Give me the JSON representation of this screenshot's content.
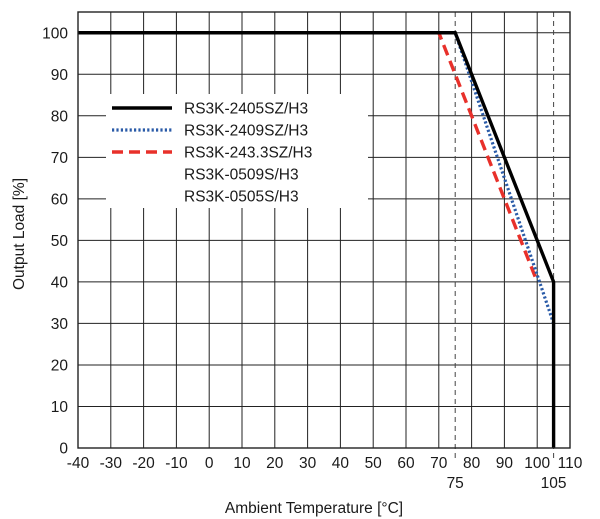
{
  "chart_data": {
    "type": "line",
    "xlabel": "Ambient Temperature [°C]",
    "ylabel": "Output Load [%]",
    "xlim": [
      -40,
      110
    ],
    "ylim": [
      0,
      105
    ],
    "grid": true,
    "legend_position": "upper-left",
    "x_ticks": [
      "-40",
      "-30",
      "-20",
      "-10",
      "0",
      "10",
      "20",
      "30",
      "40",
      "50",
      "60",
      "70",
      "75",
      "80",
      "90",
      "100",
      "105",
      "110"
    ],
    "x_tick_values": [
      -40,
      -30,
      -20,
      -10,
      0,
      10,
      20,
      30,
      40,
      50,
      60,
      70,
      75,
      80,
      90,
      100,
      105,
      110
    ],
    "x_markers": [
      {
        "value": 75,
        "label": "75"
      },
      {
        "value": 105,
        "label": "105"
      }
    ],
    "y_ticks": [
      "0",
      "10",
      "20",
      "30",
      "40",
      "50",
      "60",
      "70",
      "80",
      "90",
      "100"
    ],
    "y_tick_values": [
      0,
      10,
      20,
      30,
      40,
      50,
      60,
      70,
      80,
      90,
      100
    ],
    "series": [
      {
        "name": "RS3K-2405SZ/H3",
        "color": "#000000",
        "style": "solid",
        "points": [
          [
            -40,
            100
          ],
          [
            75,
            100
          ],
          [
            105,
            40
          ],
          [
            105,
            0
          ]
        ]
      },
      {
        "name": "RS3K-2409SZ/H3",
        "color": "#2a5ba8",
        "style": "dotted",
        "points": [
          [
            -40,
            100
          ],
          [
            75,
            100
          ],
          [
            105,
            30
          ]
        ]
      },
      {
        "name": "RS3K-243.3SZ/H3",
        "color": "#e8302a",
        "style": "dashed",
        "points": [
          [
            -40,
            100
          ],
          [
            70,
            100
          ],
          [
            100,
            40
          ]
        ]
      }
    ],
    "legend_extra": [
      "RS3K-0509S/H3",
      "RS3K-0505S/H3"
    ]
  }
}
